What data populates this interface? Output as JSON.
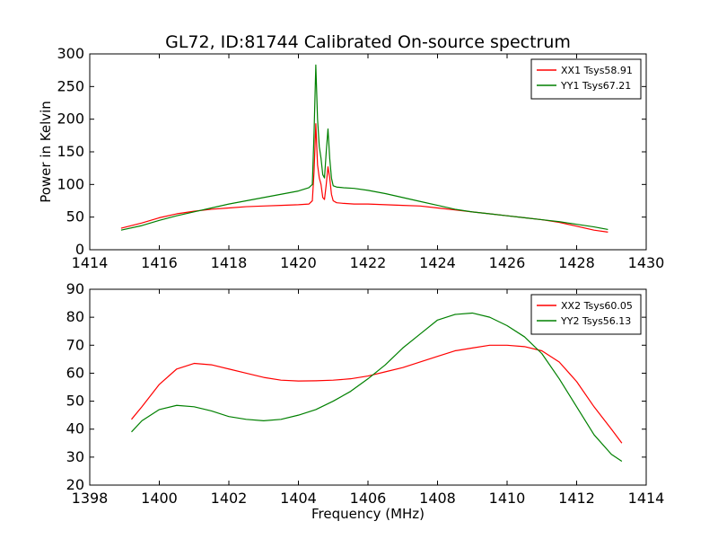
{
  "figure": {
    "title": "GL72, ID:81744 Calibrated On-source spectrum"
  },
  "chart_data": [
    {
      "type": "line",
      "title": "GL72, ID:81744 Calibrated On-source spectrum",
      "xlabel": "",
      "ylabel": "Power in Kelvin",
      "xlim": [
        1414,
        1430
      ],
      "ylim": [
        0,
        300
      ],
      "xticks": [
        "1414",
        "1416",
        "1418",
        "1420",
        "1422",
        "1424",
        "1426",
        "1428",
        "1430"
      ],
      "yticks": [
        "0",
        "50",
        "100",
        "150",
        "200",
        "250",
        "300"
      ],
      "grid": false,
      "legend_position": "top-right",
      "series": [
        {
          "name": "XX1 Tsys58.91",
          "color": "#ff0000",
          "x": [
            1414.9,
            1415.5,
            1416,
            1416.5,
            1417,
            1417.5,
            1418,
            1418.5,
            1419,
            1419.5,
            1420,
            1420.3,
            1420.4,
            1420.45,
            1420.5,
            1420.55,
            1420.6,
            1420.65,
            1420.7,
            1420.75,
            1420.8,
            1420.85,
            1420.9,
            1420.95,
            1421.0,
            1421.1,
            1421.3,
            1421.6,
            1422,
            1422.5,
            1423,
            1423.5,
            1424,
            1424.5,
            1425,
            1425.5,
            1426,
            1426.5,
            1427,
            1427.5,
            1428,
            1428.5,
            1428.9
          ],
          "y": [
            33,
            41,
            49,
            55,
            59,
            62,
            64,
            66,
            67,
            68,
            69,
            70,
            75,
            120,
            193,
            130,
            110,
            100,
            80,
            77,
            100,
            127,
            110,
            85,
            75,
            72,
            71,
            70,
            70,
            69,
            68,
            67,
            64,
            61,
            58,
            55,
            52,
            49,
            46,
            42,
            36,
            30,
            27
          ]
        },
        {
          "name": "YY1 Tsys67.21",
          "color": "#008000",
          "x": [
            1414.9,
            1415.5,
            1416,
            1416.5,
            1417,
            1417.5,
            1418,
            1418.5,
            1419,
            1419.5,
            1420,
            1420.3,
            1420.4,
            1420.45,
            1420.5,
            1420.55,
            1420.6,
            1420.65,
            1420.7,
            1420.75,
            1420.8,
            1420.85,
            1420.9,
            1420.95,
            1421.0,
            1421.1,
            1421.3,
            1421.6,
            1422,
            1422.5,
            1423,
            1423.5,
            1424,
            1424.5,
            1425,
            1425.5,
            1426,
            1426.5,
            1427,
            1427.5,
            1428,
            1428.5,
            1428.9
          ],
          "y": [
            30,
            37,
            45,
            52,
            58,
            64,
            70,
            75,
            80,
            85,
            90,
            95,
            100,
            180,
            283,
            200,
            158,
            140,
            115,
            110,
            150,
            185,
            140,
            110,
            98,
            96,
            95,
            94,
            91,
            86,
            80,
            74,
            68,
            62,
            58,
            55,
            52,
            49,
            46,
            43,
            39,
            35,
            31
          ]
        }
      ]
    },
    {
      "type": "line",
      "title": "",
      "xlabel": "Frequency (MHz)",
      "ylabel": "",
      "xlim": [
        1398,
        1414
      ],
      "ylim": [
        20,
        90
      ],
      "xticks": [
        "1398",
        "1400",
        "1402",
        "1404",
        "1406",
        "1408",
        "1410",
        "1412",
        "1414"
      ],
      "yticks": [
        "20",
        "30",
        "40",
        "50",
        "60",
        "70",
        "80",
        "90"
      ],
      "grid": false,
      "legend_position": "top-right",
      "series": [
        {
          "name": "XX2 Tsys60.05",
          "color": "#ff0000",
          "x": [
            1399.2,
            1399.5,
            1400,
            1400.5,
            1401,
            1401.5,
            1402,
            1402.5,
            1403,
            1403.5,
            1404,
            1404.5,
            1405,
            1405.5,
            1406,
            1406.5,
            1407,
            1407.5,
            1408,
            1408.5,
            1409,
            1409.5,
            1410,
            1410.5,
            1411,
            1411.5,
            1412,
            1412.5,
            1413,
            1413.3
          ],
          "y": [
            43.5,
            48,
            56,
            61.5,
            63.5,
            63,
            61.5,
            60,
            58.5,
            57.5,
            57.2,
            57.3,
            57.5,
            58,
            59,
            60.5,
            62,
            64,
            66,
            68,
            69,
            70,
            70,
            69.5,
            68,
            64,
            57,
            48,
            40,
            35
          ]
        },
        {
          "name": "YY2 Tsys56.13",
          "color": "#008000",
          "x": [
            1399.2,
            1399.5,
            1400,
            1400.5,
            1401,
            1401.5,
            1402,
            1402.5,
            1403,
            1403.5,
            1404,
            1404.5,
            1405,
            1405.5,
            1406,
            1406.5,
            1407,
            1407.5,
            1408,
            1408.5,
            1409,
            1409.5,
            1410,
            1410.5,
            1411,
            1411.5,
            1412,
            1412.5,
            1413,
            1413.3
          ],
          "y": [
            39,
            43,
            47,
            48.5,
            48,
            46.5,
            44.5,
            43.5,
            43,
            43.5,
            45,
            47,
            50,
            53.5,
            58,
            63,
            69,
            74,
            79,
            81,
            81.5,
            80,
            77,
            73,
            67,
            58,
            48,
            38,
            31,
            28.5
          ]
        }
      ]
    }
  ]
}
